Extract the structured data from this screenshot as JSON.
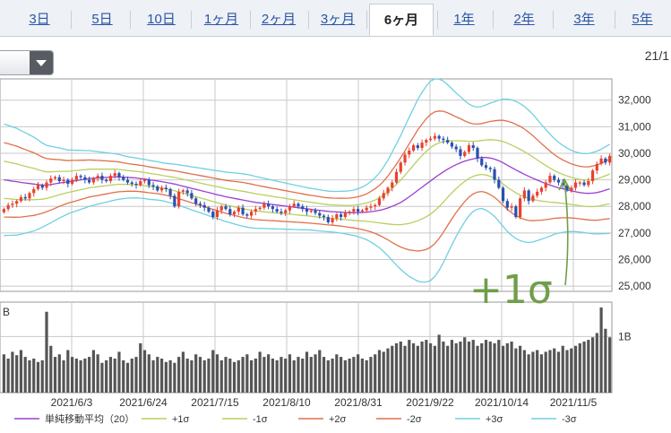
{
  "tabs": [
    {
      "label": "3日",
      "active": false
    },
    {
      "label": "5日",
      "active": false
    },
    {
      "label": "10日",
      "active": false
    },
    {
      "label": "1ヶ月",
      "active": false
    },
    {
      "label": "2ヶ月",
      "active": false
    },
    {
      "label": "3ヶ月",
      "active": false
    },
    {
      "label": "6ヶ月",
      "active": true
    },
    {
      "label": "1年",
      "active": false
    },
    {
      "label": "2年",
      "active": false
    },
    {
      "label": "3年",
      "active": false
    },
    {
      "label": "5年",
      "active": false
    }
  ],
  "date_corner": "21/1",
  "annotation": "+1σ",
  "chart_data": {
    "type": "candlestick",
    "x_tick_labels": [
      "2021/6/3",
      "2021/6/24",
      "2021/7/15",
      "2021/8/10",
      "2021/8/31",
      "2021/9/22",
      "2021/10/14",
      "2021/11/5"
    ],
    "y_ticks": [
      25000,
      26000,
      27000,
      28000,
      29000,
      30000,
      31000,
      32000
    ],
    "ylim": [
      24800,
      32800
    ],
    "volume_tick_label": "1B",
    "volume_unit_label": "B",
    "close": [
      27900,
      28050,
      28100,
      28200,
      28350,
      28300,
      28500,
      28650,
      28800,
      28700,
      28900,
      29050,
      29100,
      28950,
      29000,
      28850,
      29000,
      29150,
      29100,
      29000,
      28900,
      29050,
      29150,
      29000,
      28950,
      29150,
      29250,
      29100,
      29000,
      28900,
      28850,
      28800,
      28950,
      29000,
      28800,
      28750,
      28600,
      28700,
      28650,
      28400,
      28000,
      28550,
      28600,
      28500,
      28300,
      28100,
      28050,
      27950,
      27800,
      27600,
      27850,
      28000,
      27900,
      27700,
      27800,
      27950,
      27700,
      27650,
      27800,
      27900,
      27950,
      28100,
      28000,
      27900,
      27800,
      27750,
      27850,
      28000,
      28100,
      28000,
      27900,
      27800,
      27850,
      27750,
      27650,
      27600,
      27400,
      27550,
      27700,
      27600,
      27750,
      27800,
      27900,
      27800,
      27850,
      27950,
      28000,
      28050,
      28300,
      28500,
      28700,
      28900,
      29300,
      29650,
      29950,
      30100,
      30300,
      30200,
      30400,
      30500,
      30550,
      30650,
      30550,
      30500,
      30400,
      30250,
      30150,
      29900,
      30050,
      30300,
      30200,
      29800,
      29550,
      29450,
      29400,
      29000,
      28700,
      28200,
      27950,
      28000,
      27600,
      28300,
      28600,
      28200,
      28400,
      28550,
      28700,
      28900,
      29150,
      29000,
      28900,
      28800,
      28600,
      28700,
      28900,
      28900,
      28800,
      28950,
      29350,
      29600,
      29800,
      29650,
      29900
    ],
    "sma20": [
      29000,
      28980,
      28950,
      28930,
      28900,
      28880,
      28860,
      28840,
      28820,
      28800,
      28800,
      28820,
      28850,
      28880,
      28900,
      28920,
      28950,
      28970,
      29000,
      29020,
      29050,
      29060,
      29070,
      29080,
      29090,
      29100,
      29110,
      29110,
      29100,
      29090,
      29080,
      29070,
      29050,
      29030,
      29000,
      28980,
      28960,
      28930,
      28900,
      28870,
      28840,
      28800,
      28760,
      28720,
      28680,
      28640,
      28600,
      28560,
      28520,
      28480,
      28440,
      28400,
      28360,
      28330,
      28300,
      28270,
      28240,
      28210,
      28180,
      28150,
      28130,
      28110,
      28090,
      28070,
      28050,
      28030,
      28010,
      27990,
      27970,
      27950,
      27930,
      27910,
      27890,
      27870,
      27850,
      27830,
      27810,
      27800,
      27790,
      27780,
      27770,
      27760,
      27760,
      27760,
      27770,
      27780,
      27800,
      27820,
      27850,
      27890,
      27940,
      28000,
      28070,
      28150,
      28250,
      28360,
      28480,
      28600,
      28720,
      28840,
      28960,
      29080,
      29190,
      29300,
      29400,
      29490,
      29570,
      29640,
      29700,
      29750,
      29790,
      29820,
      29840,
      29840,
      29820,
      29780,
      29720,
      29640,
      29550,
      29460,
      29370,
      29290,
      29210,
      29130,
      29060,
      28990,
      28920,
      28860,
      28800,
      28750,
      28700,
      28660,
      28620,
      28580,
      28550,
      28520,
      28500,
      28490,
      28500,
      28520,
      28560,
      28610,
      28660
    ],
    "sigma": [
      700,
      690,
      680,
      670,
      650,
      630,
      610,
      590,
      560,
      530,
      500,
      480,
      460,
      440,
      420,
      400,
      390,
      380,
      370,
      360,
      350,
      340,
      330,
      320,
      310,
      300,
      290,
      280,
      270,
      260,
      255,
      250,
      248,
      246,
      244,
      242,
      240,
      238,
      240,
      245,
      250,
      255,
      260,
      265,
      270,
      275,
      280,
      285,
      290,
      295,
      300,
      305,
      310,
      315,
      320,
      325,
      330,
      330,
      330,
      325,
      320,
      315,
      310,
      305,
      300,
      295,
      290,
      285,
      280,
      275,
      270,
      265,
      262,
      260,
      258,
      256,
      255,
      255,
      258,
      262,
      268,
      275,
      285,
      300,
      320,
      345,
      380,
      420,
      470,
      530,
      600,
      680,
      760,
      840,
      920,
      1000,
      1070,
      1140,
      1190,
      1230,
      1250,
      1240,
      1200,
      1140,
      1060,
      980,
      900,
      830,
      760,
      700,
      660,
      640,
      640,
      660,
      690,
      720,
      760,
      800,
      830,
      850,
      860,
      860,
      850,
      830,
      800,
      760,
      720,
      680,
      640,
      600,
      570,
      545,
      525,
      510,
      500,
      495,
      495,
      500,
      510,
      520,
      530,
      545,
      560
    ],
    "volume_ratio": [
      0.45,
      0.4,
      0.48,
      0.44,
      0.5,
      0.42,
      0.38,
      0.4,
      0.36,
      0.38,
      0.95,
      0.55,
      0.42,
      0.45,
      0.38,
      0.5,
      0.42,
      0.4,
      0.38,
      0.4,
      0.42,
      0.5,
      0.45,
      0.35,
      0.38,
      0.42,
      0.4,
      0.48,
      0.38,
      0.35,
      0.4,
      0.42,
      0.58,
      0.5,
      0.45,
      0.38,
      0.42,
      0.4,
      0.36,
      0.38,
      0.35,
      0.42,
      0.48,
      0.4,
      0.38,
      0.45,
      0.42,
      0.38,
      0.4,
      0.5,
      0.45,
      0.38,
      0.42,
      0.4,
      0.36,
      0.38,
      0.42,
      0.45,
      0.38,
      0.4,
      0.48,
      0.42,
      0.45,
      0.4,
      0.38,
      0.42,
      0.4,
      0.45,
      0.38,
      0.42,
      0.4,
      0.48,
      0.42,
      0.45,
      0.5,
      0.42,
      0.38,
      0.4,
      0.45,
      0.42,
      0.38,
      0.4,
      0.42,
      0.45,
      0.4,
      0.38,
      0.42,
      0.45,
      0.5,
      0.48,
      0.52,
      0.55,
      0.58,
      0.6,
      0.55,
      0.62,
      0.58,
      0.55,
      0.6,
      0.62,
      0.58,
      0.55,
      0.68,
      0.6,
      0.55,
      0.62,
      0.58,
      0.6,
      0.65,
      0.6,
      0.62,
      0.55,
      0.58,
      0.62,
      0.6,
      0.58,
      0.62,
      0.55,
      0.58,
      0.6,
      0.52,
      0.55,
      0.5,
      0.45,
      0.48,
      0.5,
      0.45,
      0.48,
      0.5,
      0.52,
      0.48,
      0.55,
      0.5,
      0.52,
      0.55,
      0.58,
      0.6,
      0.62,
      0.65,
      0.7,
      1.0,
      0.75,
      0.65,
      0.72,
      0.6
    ],
    "legend": [
      {
        "label": "単純移動平均（20）",
        "color": "#9b3fd0"
      },
      {
        "label": "+1σ",
        "color": "#b8d060"
      },
      {
        "label": "-1σ",
        "color": "#b8d060"
      },
      {
        "label": "+2σ",
        "color": "#e0704a"
      },
      {
        "label": "-2σ",
        "color": "#e0704a"
      },
      {
        "label": "+3σ",
        "color": "#70d0e0"
      },
      {
        "label": "-3σ",
        "color": "#70d0e0"
      }
    ],
    "colors": {
      "up": "#e8422e",
      "down": "#2a4fb0",
      "volume": "#555555",
      "grid": "#c8c8c8",
      "annotation_arrow": "#6f9e4a"
    }
  }
}
